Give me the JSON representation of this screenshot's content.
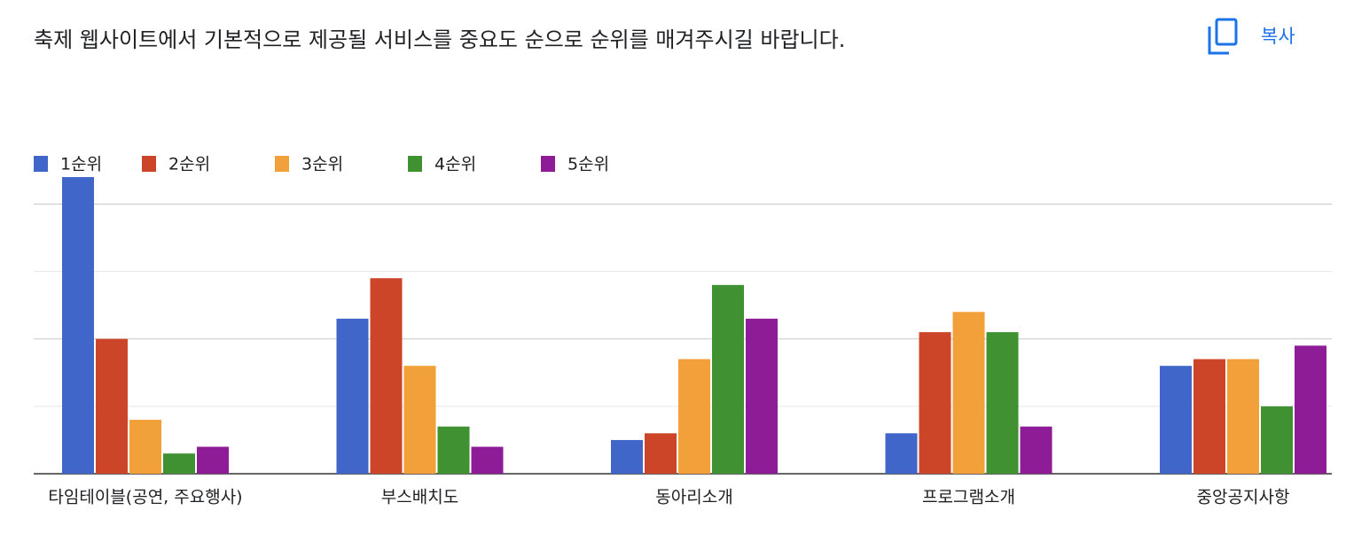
{
  "copy_label": "복사",
  "chart_data": {
    "type": "bar",
    "title": "축제 웹사이트에서 기본적으로 제공될 서비스를 중요도 순으로 순위를 매겨주시길 바랍니다.",
    "categories": [
      "타임테이블(공연, 주요행사)",
      "부스배치도",
      "동아리소개",
      "프로그램소개",
      "중앙공지사항"
    ],
    "series": [
      {
        "name": "1순위",
        "color": "#4166c9",
        "values": [
          44,
          23,
          5,
          6,
          16
        ]
      },
      {
        "name": "2순위",
        "color": "#cc4528",
        "values": [
          20,
          29,
          6,
          21,
          17
        ]
      },
      {
        "name": "3순위",
        "color": "#f2a03a",
        "values": [
          8,
          16,
          17,
          24,
          17
        ]
      },
      {
        "name": "4순위",
        "color": "#3f9132",
        "values": [
          3,
          7,
          28,
          21,
          10
        ]
      },
      {
        "name": "5순위",
        "color": "#8e1c96",
        "values": [
          4,
          4,
          23,
          7,
          19
        ]
      }
    ],
    "ylim": [
      0,
      44
    ],
    "yticks": [
      0,
      10,
      20,
      30,
      40
    ],
    "grid": true,
    "legend": "top"
  }
}
